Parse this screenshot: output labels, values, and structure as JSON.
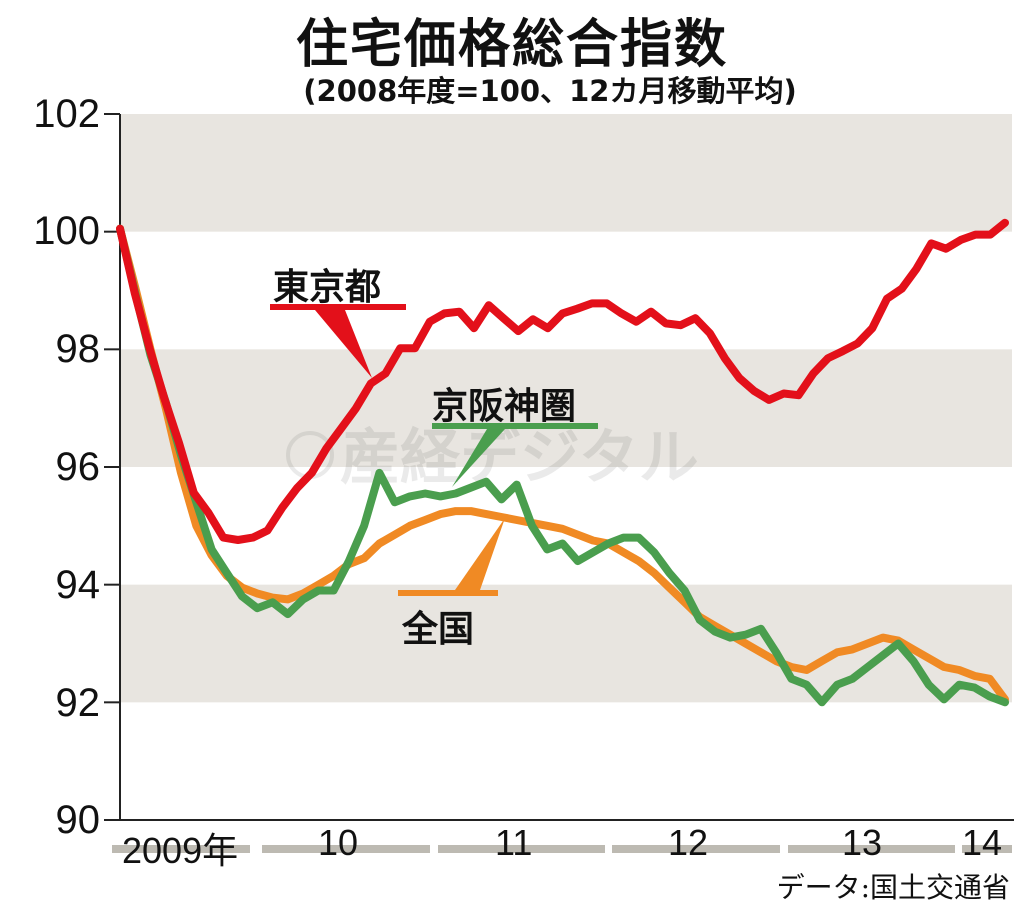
{
  "chart_data": {
    "type": "line",
    "title": "住宅価格総合指数",
    "subtitle": "(2008年度=100、12カ月移動平均)",
    "xlabel": "",
    "ylabel": "",
    "ylim": [
      90,
      102
    ],
    "yticks": [
      "102",
      "100",
      "98",
      "96",
      "94",
      "92",
      "90"
    ],
    "xticks": [
      "2009年",
      "10",
      "11",
      "12",
      "13",
      "14"
    ],
    "grid": "alternating horizontal bands",
    "source": "データ:国土交通省",
    "watermark": "産経デジタル",
    "series": [
      {
        "name": "東京都",
        "color": "#e3101a",
        "values": [
          100.05,
          98.95,
          98.02,
          97.17,
          96.41,
          95.56,
          95.22,
          94.8,
          94.76,
          94.8,
          94.92,
          95.31,
          95.64,
          95.9,
          96.32,
          96.66,
          97.0,
          97.42,
          97.59,
          98.02,
          98.02,
          98.47,
          98.61,
          98.64,
          98.36,
          98.75,
          98.53,
          98.31,
          98.51,
          98.36,
          98.61,
          98.69,
          98.78,
          98.78,
          98.61,
          98.47,
          98.64,
          98.44,
          98.41,
          98.53,
          98.27,
          97.85,
          97.51,
          97.29,
          97.14,
          97.25,
          97.22,
          97.59,
          97.85,
          97.97,
          98.1,
          98.36,
          98.86,
          99.03,
          99.37,
          99.8,
          99.71,
          99.86,
          99.95,
          99.95,
          100.15
        ]
      },
      {
        "name": "京阪神圏",
        "color": "#4a9e4e",
        "values": [
          100.05,
          98.95,
          97.9,
          97.1,
          96.2,
          95.4,
          94.6,
          94.2,
          93.8,
          93.6,
          93.7,
          93.5,
          93.75,
          93.9,
          93.9,
          94.4,
          95.0,
          95.9,
          95.4,
          95.5,
          95.55,
          95.5,
          95.55,
          95.65,
          95.75,
          95.45,
          95.7,
          95.0,
          94.6,
          94.7,
          94.4,
          94.55,
          94.7,
          94.8,
          94.8,
          94.55,
          94.2,
          93.9,
          93.4,
          93.2,
          93.1,
          93.15,
          93.25,
          92.85,
          92.4,
          92.3,
          92.0,
          92.3,
          92.4,
          92.6,
          92.8,
          93.0,
          92.7,
          92.3,
          92.05,
          92.3,
          92.25,
          92.1,
          92.0
        ]
      },
      {
        "name": "全国",
        "color": "#f08a24",
        "values": [
          100.05,
          99.05,
          98.0,
          97.0,
          95.9,
          95.0,
          94.5,
          94.15,
          93.95,
          93.85,
          93.78,
          93.75,
          93.85,
          94.0,
          94.15,
          94.35,
          94.45,
          94.7,
          94.85,
          95.0,
          95.1,
          95.2,
          95.25,
          95.25,
          95.2,
          95.15,
          95.1,
          95.05,
          95.0,
          94.95,
          94.85,
          94.75,
          94.7,
          94.55,
          94.4,
          94.2,
          93.95,
          93.7,
          93.45,
          93.3,
          93.15,
          93.0,
          92.85,
          92.7,
          92.6,
          92.55,
          92.7,
          92.85,
          92.9,
          93.0,
          93.1,
          93.05,
          92.9,
          92.75,
          92.6,
          92.55,
          92.45,
          92.4,
          92.05
        ]
      }
    ]
  },
  "labels": {
    "tokyo": "東京都",
    "keihanshin": "京阪神圏",
    "national": "全国"
  }
}
